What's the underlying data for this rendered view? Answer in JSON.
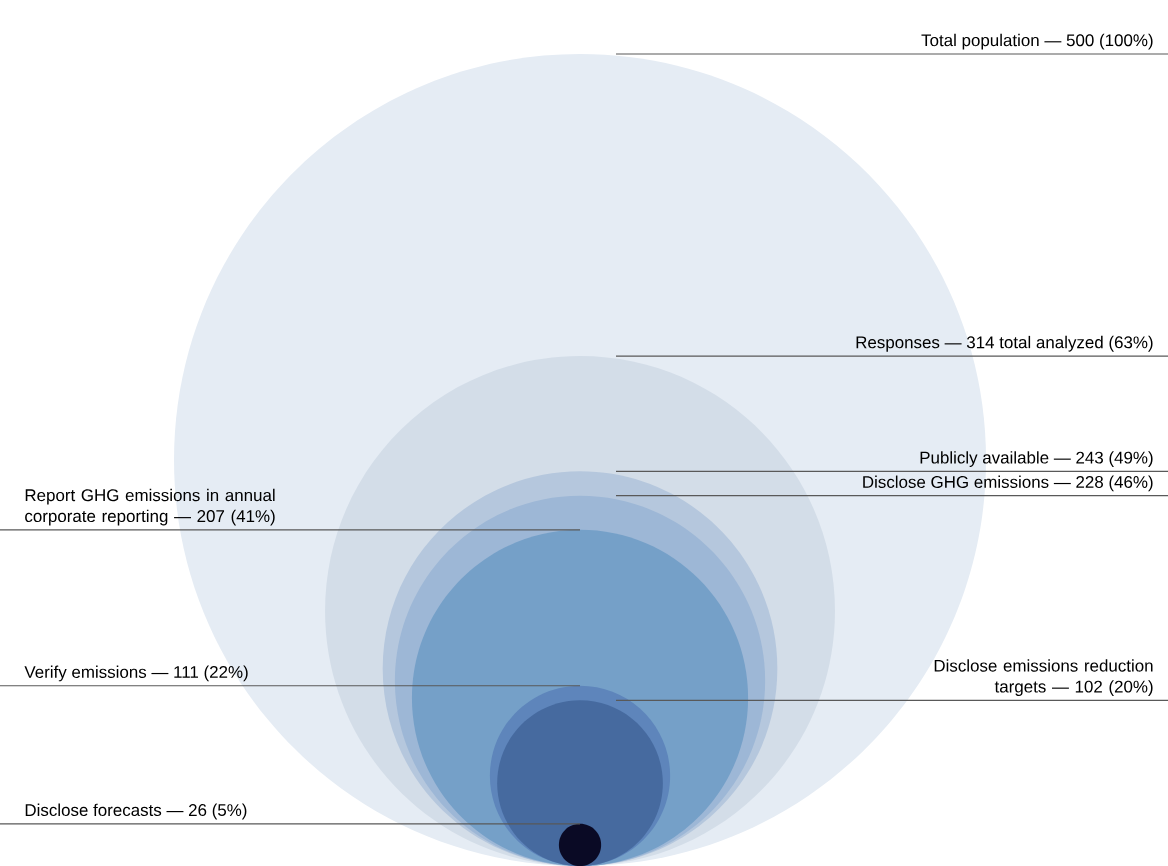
{
  "chart_data": {
    "type": "other",
    "categories": [
      "Total population",
      "Responses",
      "Publicly available",
      "Disclose GHG emissions",
      "Report GHG emissions in annual corporate reporting",
      "Verify emissions",
      "Disclose emissions reduction targets",
      "Disclose forecasts"
    ],
    "values": [
      500,
      314,
      243,
      228,
      207,
      111,
      102,
      26
    ],
    "value_labels": [
      "— 500 (100%)",
      "— 314 total analyzed (63%)",
      "— 243 (49%)",
      "— 228 (46%)",
      "— 207 (41%)",
      "— 111 (22%)",
      "— 102 (20%)",
      "— 26 (5%)"
    ],
    "colors": [
      "#e5ecf4",
      "#d3dde8",
      "#b5c7dd",
      "#9db7d6",
      "#75a0c8",
      "#5e85bb",
      "#466a9f",
      "#0a0a25"
    ]
  }
}
